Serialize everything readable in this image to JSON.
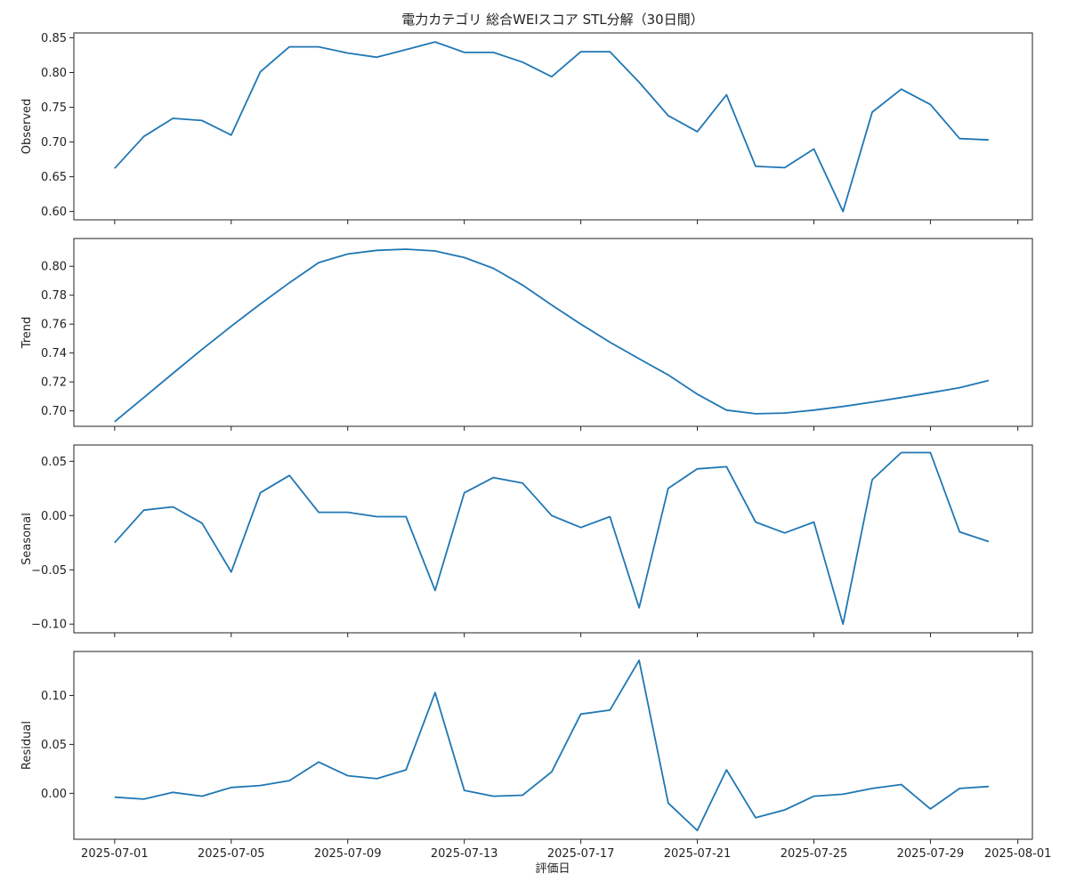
{
  "chart_data": {
    "type": "line",
    "title": "電力カテゴリ 総合WEIスコア STL分解（30日間）",
    "xlabel": "評価日",
    "color": "#1f77b4",
    "x": [
      "2025-07-01",
      "2025-07-02",
      "2025-07-03",
      "2025-07-04",
      "2025-07-05",
      "2025-07-06",
      "2025-07-07",
      "2025-07-08",
      "2025-07-09",
      "2025-07-10",
      "2025-07-11",
      "2025-07-12",
      "2025-07-13",
      "2025-07-14",
      "2025-07-15",
      "2025-07-16",
      "2025-07-17",
      "2025-07-18",
      "2025-07-19",
      "2025-07-20",
      "2025-07-21",
      "2025-07-22",
      "2025-07-23",
      "2025-07-24",
      "2025-07-25",
      "2025-07-26",
      "2025-07-27",
      "2025-07-28",
      "2025-07-29",
      "2025-07-30",
      "2025-07-31"
    ],
    "xticks": [
      "2025-07-01",
      "2025-07-05",
      "2025-07-09",
      "2025-07-13",
      "2025-07-17",
      "2025-07-21",
      "2025-07-25",
      "2025-07-29",
      "2025-08-01"
    ],
    "xlim": [
      "2025-06-29.6",
      "2025-08-01.5"
    ],
    "panels": [
      {
        "ylabel": "Observed",
        "ylim": [
          0.588,
          0.857
        ],
        "yticks": [
          "0.60",
          "0.65",
          "0.70",
          "0.75",
          "0.80",
          "0.85"
        ],
        "values": [
          0.662,
          0.708,
          0.734,
          0.731,
          0.71,
          0.801,
          0.837,
          0.837,
          0.828,
          0.822,
          0.833,
          0.844,
          0.829,
          0.829,
          0.815,
          0.794,
          0.83,
          0.83,
          0.786,
          0.738,
          0.715,
          0.768,
          0.665,
          0.663,
          0.69,
          0.6,
          0.743,
          0.776,
          0.754,
          0.705,
          0.703
        ]
      },
      {
        "ylabel": "Trend",
        "ylim": [
          0.6893,
          0.8192
        ],
        "yticks": [
          "0.70",
          "0.72",
          "0.74",
          "0.76",
          "0.78",
          "0.80"
        ],
        "values": [
          0.6925,
          0.7092,
          0.7259,
          0.7425,
          0.7585,
          0.7739,
          0.7886,
          0.8025,
          0.8085,
          0.811,
          0.8118,
          0.8106,
          0.806,
          0.7986,
          0.787,
          0.7732,
          0.76,
          0.7475,
          0.736,
          0.7248,
          0.7115,
          0.7005,
          0.698,
          0.6985,
          0.7005,
          0.703,
          0.706,
          0.7092,
          0.7125,
          0.716,
          0.721
        ]
      },
      {
        "ylabel": "Seasonal",
        "ylim": [
          -0.108,
          0.065
        ],
        "yticks": [
          "−0.10",
          "−0.05",
          "0.00",
          "0.05"
        ],
        "values": [
          -0.025,
          0.005,
          0.008,
          -0.007,
          -0.052,
          0.021,
          0.037,
          0.003,
          0.003,
          -0.001,
          -0.001,
          -0.069,
          0.021,
          0.035,
          0.03,
          0.0,
          -0.011,
          -0.001,
          -0.085,
          0.025,
          0.043,
          0.045,
          -0.006,
          -0.016,
          -0.006,
          -0.1,
          0.033,
          0.058,
          0.058,
          -0.015,
          -0.024
        ]
      },
      {
        "ylabel": "Residual",
        "ylim": [
          -0.047,
          0.145
        ],
        "yticks": [
          "0.00",
          "0.05",
          "0.10"
        ],
        "values": [
          -0.004,
          -0.006,
          0.001,
          -0.003,
          0.006,
          0.008,
          0.013,
          0.032,
          0.018,
          0.015,
          0.024,
          0.103,
          0.003,
          -0.003,
          -0.002,
          0.022,
          0.081,
          0.085,
          0.136,
          -0.01,
          -0.038,
          0.024,
          -0.025,
          -0.017,
          -0.003,
          -0.001,
          0.005,
          0.009,
          -0.016,
          0.005,
          0.007
        ]
      }
    ]
  }
}
